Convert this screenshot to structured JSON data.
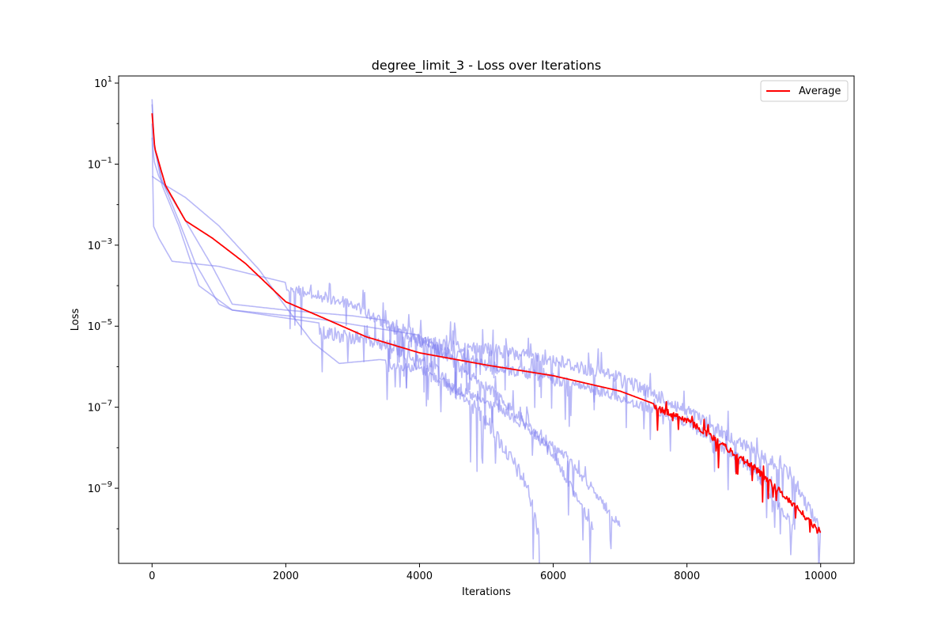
{
  "chart_data": {
    "type": "line",
    "title": "degree_limit_3 - Loss over Iterations",
    "xlabel": "Iterations",
    "ylabel": "Loss",
    "yscale": "log",
    "xlim": [
      -500,
      10500
    ],
    "ylim": [
      1.4e-11,
      15
    ],
    "xticks": [
      0,
      2000,
      4000,
      6000,
      8000,
      10000
    ],
    "xtick_labels": [
      "0",
      "2000",
      "4000",
      "6000",
      "8000",
      "10000"
    ],
    "yticks": [
      10.0,
      0.1,
      0.001,
      1e-05,
      1e-07,
      1e-09
    ],
    "ytick_labels": [
      {
        "base": "10",
        "exp": "1"
      },
      {
        "base": "10",
        "exp": "−1"
      },
      {
        "base": "10",
        "exp": "−3"
      },
      {
        "base": "10",
        "exp": "−5"
      },
      {
        "base": "10",
        "exp": "−7"
      },
      {
        "base": "10",
        "exp": "−9"
      }
    ],
    "grid": false,
    "legend": {
      "position": "upper right",
      "entries": [
        "Average"
      ]
    },
    "colors": {
      "runs": "#8080f0",
      "average": "#ff0000",
      "axes": "#000000"
    },
    "runs": [
      {
        "noise": 0.35,
        "noise_start": 2500,
        "points": [
          [
            0,
            4.0
          ],
          [
            30,
            0.3
          ],
          [
            150,
            0.04
          ],
          [
            400,
            0.004
          ],
          [
            650,
            0.00035
          ],
          [
            1000,
            3.5e-05
          ],
          [
            1200,
            2.5e-05
          ],
          [
            2500,
            1.2e-05
          ],
          [
            3500,
            6e-06
          ],
          [
            4200,
            1.5e-06
          ],
          [
            5000,
            8e-08
          ],
          [
            5600,
            2e-09
          ],
          [
            5800,
            1e-10
          ]
        ]
      },
      {
        "noise": 0.25,
        "noise_start": 3500,
        "points": [
          [
            0,
            0.45
          ],
          [
            30,
            0.12
          ],
          [
            100,
            0.05
          ],
          [
            500,
            0.004
          ],
          [
            900,
            0.0003
          ],
          [
            1200,
            3.5e-05
          ],
          [
            2000,
            2.5e-05
          ],
          [
            3000,
            1.8e-05
          ],
          [
            3800,
            1.2e-05
          ],
          [
            4400,
            2.5e-06
          ],
          [
            5200,
            2.5e-07
          ],
          [
            6000,
            1e-08
          ],
          [
            6600,
            1.4e-10
          ]
        ]
      },
      {
        "noise": 0.2,
        "noise_start": 3500,
        "points": [
          [
            0,
            0.05
          ],
          [
            200,
            0.03
          ],
          [
            500,
            0.015
          ],
          [
            1000,
            0.003
          ],
          [
            1600,
            0.00025
          ],
          [
            2000,
            3e-05
          ],
          [
            2400,
            4e-06
          ],
          [
            2800,
            1.2e-06
          ],
          [
            3400,
            1.5e-06
          ],
          [
            4000,
            1.2e-06
          ],
          [
            4500,
            4e-07
          ],
          [
            5200,
            1.2e-07
          ],
          [
            6200,
            8e-09
          ],
          [
            7000,
            1.5e-10
          ]
        ]
      },
      {
        "noise": 0.25,
        "noise_start": 2000,
        "points": [
          [
            0,
            1.0
          ],
          [
            20,
            0.003
          ],
          [
            100,
            0.0015
          ],
          [
            300,
            0.0004
          ],
          [
            1000,
            0.0003
          ],
          [
            2000,
            0.00012
          ],
          [
            3000,
            5e-05
          ],
          [
            3600,
            1.2e-05
          ],
          [
            4200,
            4e-06
          ],
          [
            5000,
            1.5e-06
          ],
          [
            6000,
            7e-07
          ],
          [
            7000,
            2.5e-07
          ],
          [
            8000,
            6e-08
          ],
          [
            9000,
            4e-09
          ],
          [
            9600,
            1.5e-10
          ]
        ]
      },
      {
        "noise": 0.3,
        "noise_start": 4000,
        "points": [
          [
            0,
            3.0
          ],
          [
            30,
            0.3
          ],
          [
            150,
            0.03
          ],
          [
            400,
            0.003
          ],
          [
            700,
            0.0001
          ],
          [
            1200,
            2.5e-05
          ],
          [
            2500,
            1.5e-05
          ],
          [
            4000,
            6e-06
          ],
          [
            5000,
            4e-06
          ],
          [
            6000,
            2.2e-06
          ],
          [
            7000,
            8e-07
          ],
          [
            8000,
            1.2e-07
          ],
          [
            9000,
            1.2e-08
          ],
          [
            9500,
            4e-09
          ],
          [
            10000,
            1.5e-10
          ]
        ]
      }
    ],
    "average": {
      "noise": 0.15,
      "noise_start": 7500,
      "points": [
        [
          0,
          1.8
        ],
        [
          40,
          0.25
        ],
        [
          200,
          0.03
        ],
        [
          500,
          0.004
        ],
        [
          900,
          0.0015
        ],
        [
          1400,
          0.00035
        ],
        [
          2000,
          4e-05
        ],
        [
          2600,
          1.5e-05
        ],
        [
          3200,
          5.5e-06
        ],
        [
          4000,
          2.2e-06
        ],
        [
          5000,
          1.1e-06
        ],
        [
          6000,
          6e-07
        ],
        [
          7000,
          2.5e-07
        ],
        [
          8000,
          6e-08
        ],
        [
          9000,
          4e-09
        ],
        [
          9500,
          7e-10
        ],
        [
          10000,
          1e-10
        ]
      ]
    }
  }
}
